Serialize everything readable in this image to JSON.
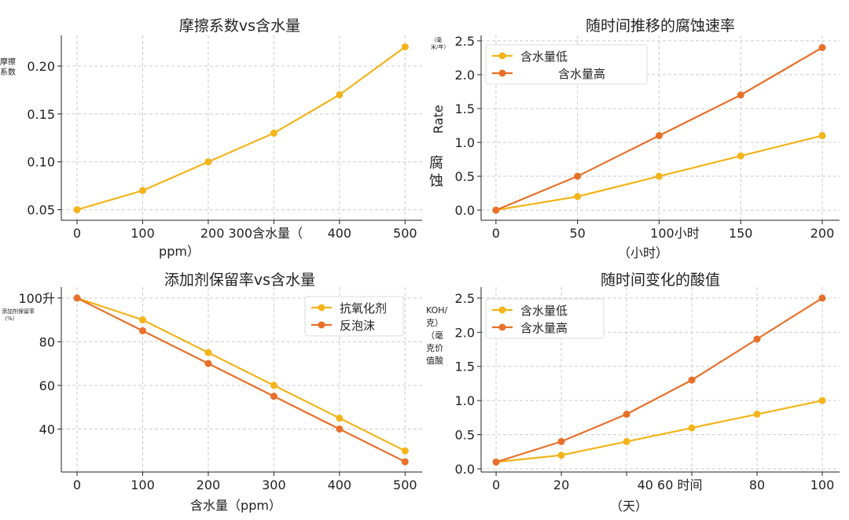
{
  "colors": {
    "yellow": "#F4B41A",
    "orange": "#E8702A",
    "grid": "#cccccc"
  },
  "chart_data": [
    {
      "type": "line",
      "title": "摩擦系数vs含水量",
      "ylabel": "摩擦系数",
      "xlabel": "ppm）",
      "x": [
        0,
        100,
        200,
        300,
        400,
        500
      ],
      "xticks": [
        "0",
        "100",
        "200 300含水量（",
        "",
        "400",
        "500"
      ],
      "yticks": [
        0.05,
        0.1,
        0.15,
        0.2
      ],
      "ytick_labels": [
        "0.05",
        "0.10",
        "0.15",
        "0.20"
      ],
      "xlim": [
        -24,
        526
      ],
      "ylim": [
        0.039,
        0.232
      ],
      "grid": true,
      "series": [
        {
          "color": "yellow",
          "values": [
            0.05,
            0.07,
            0.1,
            0.13,
            0.17,
            0.22
          ]
        }
      ]
    },
    {
      "type": "line",
      "title": "随时间推移的腐蚀速率",
      "ylabel_unit": "（毫米/年）",
      "ylabel_en": "Rate",
      "ylabel": "腐蚀",
      "xlabel": "（小时）",
      "x": [
        0,
        50,
        100,
        150,
        200
      ],
      "xticks": [
        "0",
        "50",
        "100小时",
        "150",
        "200"
      ],
      "yticks": [
        0,
        0.5,
        1.0,
        1.5,
        2.0,
        2.5
      ],
      "ytick_labels": [
        "0.0",
        "0.5",
        "1.0",
        "1.5",
        "2.0",
        "2.5"
      ],
      "xlim": [
        -9.1,
        210.6
      ],
      "ylim": [
        -0.15,
        2.58
      ],
      "grid": true,
      "legend": "top-left",
      "series": [
        {
          "name": "含水量低",
          "color": "yellow",
          "values": [
            0,
            0.2,
            0.5,
            0.8,
            1.1
          ]
        },
        {
          "name": "含水量高",
          "color": "orange",
          "values": [
            0,
            0.5,
            1.1,
            1.7,
            2.4
          ]
        }
      ]
    },
    {
      "type": "line",
      "title": "添加剂保留率vs含水量",
      "ylabel": "添加剂保留率（%）",
      "xlabel": "含水量（ppm）",
      "x": [
        0,
        100,
        200,
        300,
        400,
        500
      ],
      "xticks": [
        "0",
        "100",
        "200",
        "300",
        "400",
        "500"
      ],
      "yticks": [
        40,
        60,
        80,
        100
      ],
      "ytick_labels": [
        "40",
        "60",
        "80",
        "100升"
      ],
      "xlim": [
        -24,
        526
      ],
      "ylim": [
        20.3,
        105
      ],
      "grid": true,
      "legend": "top-right",
      "series": [
        {
          "name": "抗氧化剂",
          "color": "yellow",
          "values": [
            100,
            90,
            75,
            60,
            45,
            30
          ]
        },
        {
          "name": "反泡沫",
          "color": "orange",
          "values": [
            100,
            85,
            70,
            55,
            40,
            25
          ]
        }
      ]
    },
    {
      "type": "line",
      "title": "随时间变化的酸值",
      "ylabel": "KOH/克）（毫克价值酸",
      "xlabel": "（天）",
      "x": [
        0,
        20,
        40,
        60,
        80,
        100
      ],
      "xticks": [
        "0",
        "20",
        "40 60 时间",
        "",
        "80",
        "100"
      ],
      "yticks": [
        0,
        0.5,
        1.0,
        1.5,
        2.0,
        2.5
      ],
      "ytick_labels": [
        "0.0",
        "0.5",
        "1.0",
        "1.5",
        "2.0",
        "2.5"
      ],
      "xlim": [
        -4.6,
        105.3
      ],
      "ylim": [
        -0.046,
        2.66
      ],
      "grid": true,
      "legend": "top-left",
      "series": [
        {
          "name": "含水量低",
          "color": "yellow",
          "values": [
            0.1,
            0.2,
            0.4,
            0.6,
            0.8,
            1.0
          ]
        },
        {
          "name": "含水量高",
          "color": "orange",
          "values": [
            0.1,
            0.4,
            0.8,
            1.3,
            1.9,
            2.5
          ]
        }
      ]
    }
  ]
}
